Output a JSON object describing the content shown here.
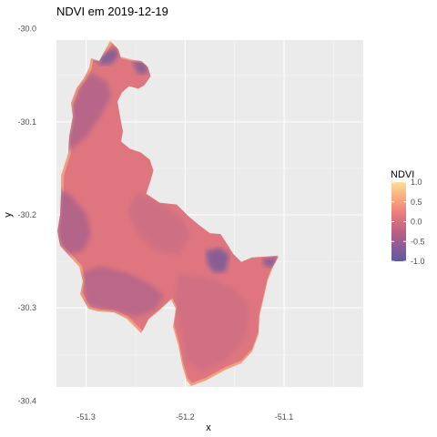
{
  "chart_data": {
    "type": "heatmap",
    "title": "NDVI em 2019-12-19",
    "xlabel": "x",
    "ylabel": "y",
    "xlim": [
      -51.33,
      -51.02
    ],
    "ylim": [
      -30.385,
      -30.012
    ],
    "x_ticks": [
      -51.3,
      -51.2,
      -51.1
    ],
    "x_tick_labels": [
      "-51.3",
      "-51.2",
      "-51.1"
    ],
    "y_ticks": [
      -30.0,
      -30.1,
      -30.2,
      -30.3,
      -30.4
    ],
    "y_tick_labels": [
      "-30.0",
      "-30.1",
      "-30.2",
      "-30.3",
      "-30.4"
    ],
    "grid": true,
    "panel_background": "#ebebeb",
    "legend": {
      "title": "NDVI",
      "position": "right",
      "range": [
        -1.0,
        1.0
      ],
      "breaks": [
        1.0,
        0.5,
        0.0,
        -0.5,
        -1.0
      ],
      "break_labels": [
        "1.0",
        "0.5",
        "0.0",
        "-0.5",
        "-1.0"
      ],
      "colors": [
        "#f9e09a",
        "#f9a97d",
        "#e97c7f",
        "#c2637f",
        "#8f5b98",
        "#5f5b9c"
      ]
    },
    "region": {
      "dominant_value": 0.1,
      "boundary_values": 0.5,
      "darker_zones_value": -0.4,
      "darkest_patches_value": -0.8
    }
  }
}
